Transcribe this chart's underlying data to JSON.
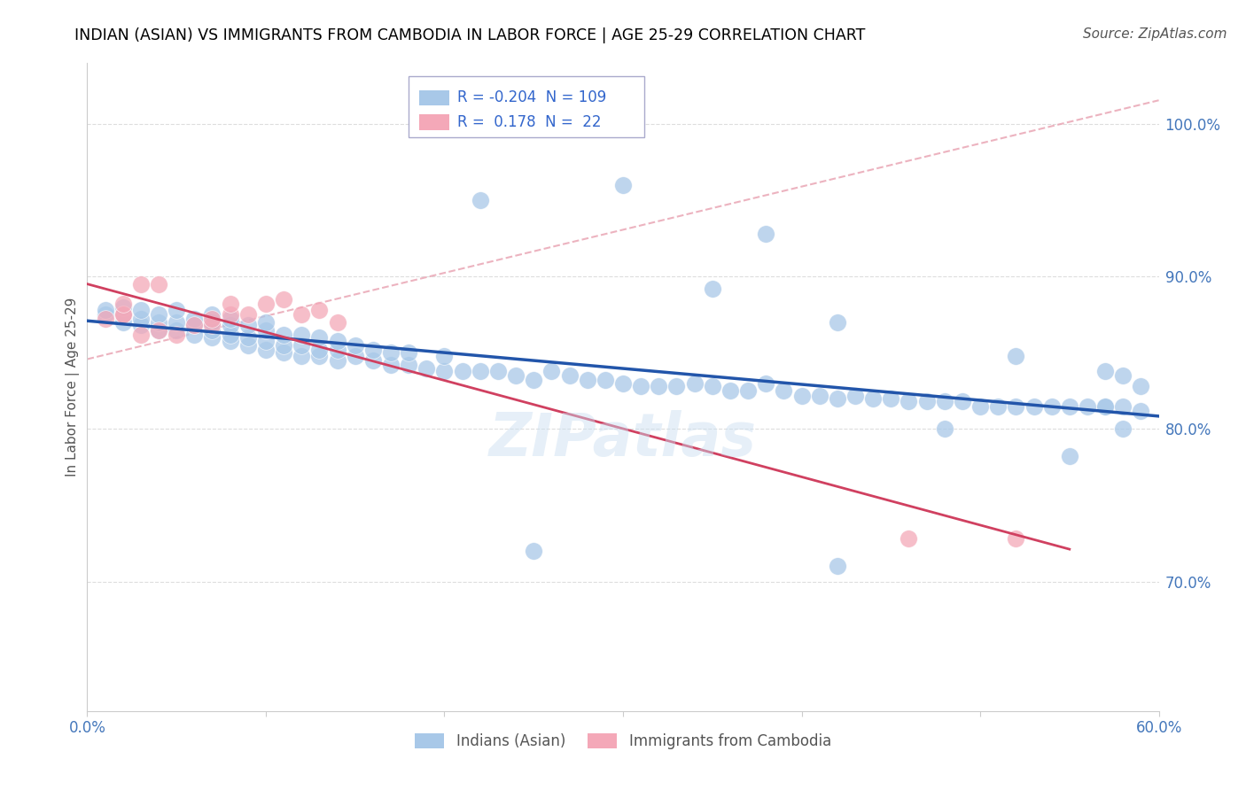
{
  "title": "INDIAN (ASIAN) VS IMMIGRANTS FROM CAMBODIA IN LABOR FORCE | AGE 25-29 CORRELATION CHART",
  "source": "Source: ZipAtlas.com",
  "ylabel": "In Labor Force | Age 25-29",
  "xlim": [
    0.0,
    0.6
  ],
  "ylim": [
    0.615,
    1.04
  ],
  "xtick_pos": [
    0.0,
    0.1,
    0.2,
    0.3,
    0.4,
    0.5,
    0.6
  ],
  "xticklabels": [
    "0.0%",
    "",
    "",
    "",
    "",
    "",
    "60.0%"
  ],
  "ytick_positions": [
    0.7,
    0.8,
    0.9,
    1.0
  ],
  "ytick_labels": [
    "70.0%",
    "80.0%",
    "90.0%",
    "100.0%"
  ],
  "R_indian": -0.204,
  "N_indian": 109,
  "R_cambodia": 0.178,
  "N_cambodia": 22,
  "legend_label_indian": "Indians (Asian)",
  "legend_label_cambodia": "Immigrants from Cambodia",
  "indian_color": "#a8c8e8",
  "cambodia_color": "#f4a8b8",
  "indian_line_color": "#2255aa",
  "cambodia_line_color": "#d04060",
  "ref_line_color": "#e8a0b0",
  "watermark": "ZIPatlas",
  "indian_x": [
    0.01,
    0.01,
    0.02,
    0.02,
    0.02,
    0.03,
    0.03,
    0.03,
    0.04,
    0.04,
    0.04,
    0.05,
    0.05,
    0.05,
    0.06,
    0.06,
    0.06,
    0.07,
    0.07,
    0.07,
    0.07,
    0.08,
    0.08,
    0.08,
    0.08,
    0.09,
    0.09,
    0.09,
    0.1,
    0.1,
    0.1,
    0.1,
    0.11,
    0.11,
    0.11,
    0.12,
    0.12,
    0.12,
    0.13,
    0.13,
    0.13,
    0.14,
    0.14,
    0.14,
    0.15,
    0.15,
    0.16,
    0.16,
    0.17,
    0.17,
    0.18,
    0.18,
    0.19,
    0.2,
    0.2,
    0.21,
    0.22,
    0.23,
    0.24,
    0.25,
    0.26,
    0.27,
    0.28,
    0.29,
    0.3,
    0.31,
    0.32,
    0.33,
    0.34,
    0.35,
    0.36,
    0.37,
    0.38,
    0.39,
    0.4,
    0.41,
    0.42,
    0.43,
    0.44,
    0.45,
    0.46,
    0.47,
    0.48,
    0.49,
    0.5,
    0.51,
    0.52,
    0.53,
    0.54,
    0.55,
    0.56,
    0.57,
    0.57,
    0.58,
    0.59,
    0.22,
    0.3,
    0.35,
    0.38,
    0.42,
    0.48,
    0.52,
    0.55,
    0.57,
    0.58,
    0.59,
    0.42,
    0.58,
    0.25
  ],
  "indian_y": [
    0.875,
    0.878,
    0.87,
    0.875,
    0.88,
    0.868,
    0.872,
    0.878,
    0.865,
    0.87,
    0.875,
    0.865,
    0.87,
    0.878,
    0.862,
    0.868,
    0.872,
    0.86,
    0.865,
    0.87,
    0.875,
    0.858,
    0.862,
    0.868,
    0.872,
    0.855,
    0.86,
    0.868,
    0.852,
    0.858,
    0.865,
    0.87,
    0.85,
    0.855,
    0.862,
    0.848,
    0.855,
    0.862,
    0.848,
    0.852,
    0.86,
    0.845,
    0.852,
    0.858,
    0.848,
    0.855,
    0.845,
    0.852,
    0.842,
    0.85,
    0.842,
    0.85,
    0.84,
    0.838,
    0.848,
    0.838,
    0.838,
    0.838,
    0.835,
    0.832,
    0.838,
    0.835,
    0.832,
    0.832,
    0.83,
    0.828,
    0.828,
    0.828,
    0.83,
    0.828,
    0.825,
    0.825,
    0.83,
    0.825,
    0.822,
    0.822,
    0.82,
    0.822,
    0.82,
    0.82,
    0.818,
    0.818,
    0.818,
    0.818,
    0.815,
    0.815,
    0.815,
    0.815,
    0.815,
    0.815,
    0.815,
    0.815,
    0.815,
    0.815,
    0.812,
    0.95,
    0.96,
    0.892,
    0.928,
    0.87,
    0.8,
    0.848,
    0.782,
    0.838,
    0.835,
    0.828,
    0.71,
    0.8,
    0.72
  ],
  "cambodia_x": [
    0.01,
    0.02,
    0.02,
    0.03,
    0.04,
    0.05,
    0.06,
    0.07,
    0.07,
    0.08,
    0.08,
    0.09,
    0.1,
    0.11,
    0.12,
    0.13,
    0.14,
    0.02,
    0.03,
    0.04,
    0.46,
    0.52
  ],
  "cambodia_y": [
    0.872,
    0.875,
    0.875,
    0.862,
    0.865,
    0.862,
    0.868,
    0.868,
    0.872,
    0.875,
    0.882,
    0.875,
    0.882,
    0.885,
    0.875,
    0.878,
    0.87,
    0.882,
    0.895,
    0.895,
    0.728,
    0.728
  ]
}
